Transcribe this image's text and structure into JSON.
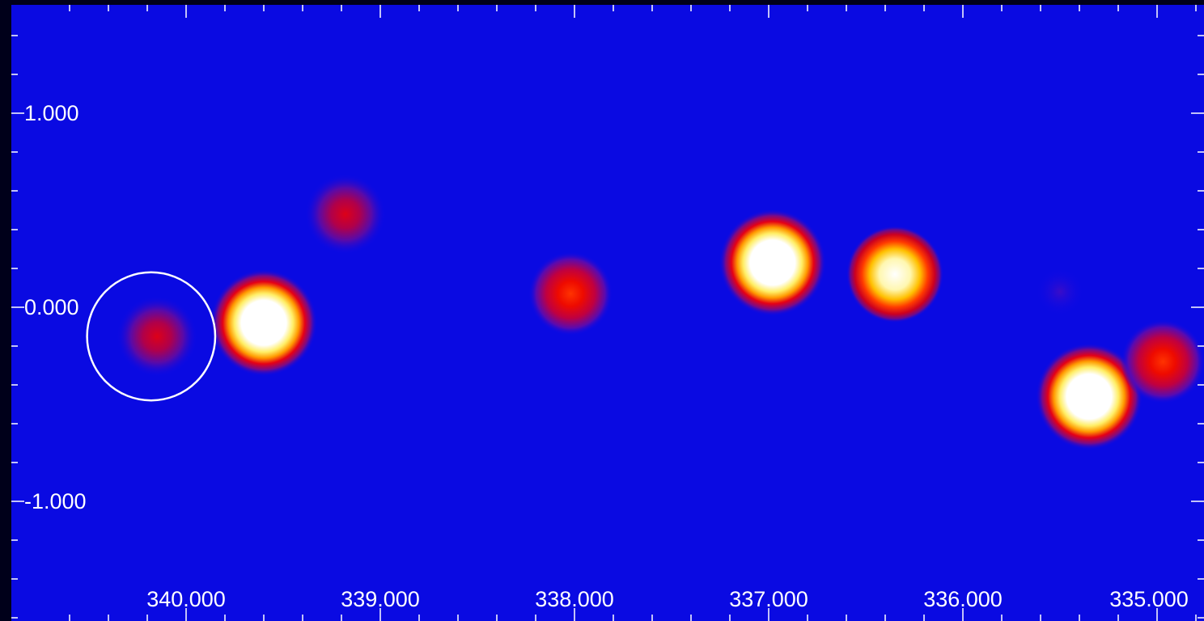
{
  "x_axis": {
    "ticks": [
      {
        "value": 340.0,
        "label": "340.000"
      },
      {
        "value": 339.0,
        "label": "339.000"
      },
      {
        "value": 338.0,
        "label": "338.000"
      },
      {
        "value": 337.0,
        "label": "337.000"
      },
      {
        "value": 336.0,
        "label": "336.000"
      },
      {
        "value": 335.0,
        "label": "335.000"
      }
    ]
  },
  "y_axis": {
    "ticks": [
      {
        "value": 1.0,
        "label": "1.000"
      },
      {
        "value": 0.0,
        "label": "0.000"
      },
      {
        "value": -1.0,
        "label": "-1.000"
      }
    ]
  },
  "sources": [
    {
      "x": 340.15,
      "y": -0.15,
      "level": "faint"
    },
    {
      "x": 339.6,
      "y": -0.08,
      "level": "saturated"
    },
    {
      "x": 339.18,
      "y": 0.48,
      "level": "faint"
    },
    {
      "x": 338.02,
      "y": 0.07,
      "level": "medium"
    },
    {
      "x": 336.98,
      "y": 0.23,
      "level": "saturated"
    },
    {
      "x": 336.35,
      "y": 0.17,
      "level": "bright"
    },
    {
      "x": 335.35,
      "y": -0.46,
      "level": "saturated"
    },
    {
      "x": 334.97,
      "y": -0.28,
      "level": "medium"
    },
    {
      "x": 335.5,
      "y": 0.08,
      "level": "trace"
    }
  ],
  "region": {
    "x": 340.18,
    "y": -0.15,
    "radius": 0.33
  },
  "colors": {
    "background": "#0b0be8",
    "frame": "#00001a",
    "ticks": "#ffffff",
    "region": "#ffffff"
  }
}
